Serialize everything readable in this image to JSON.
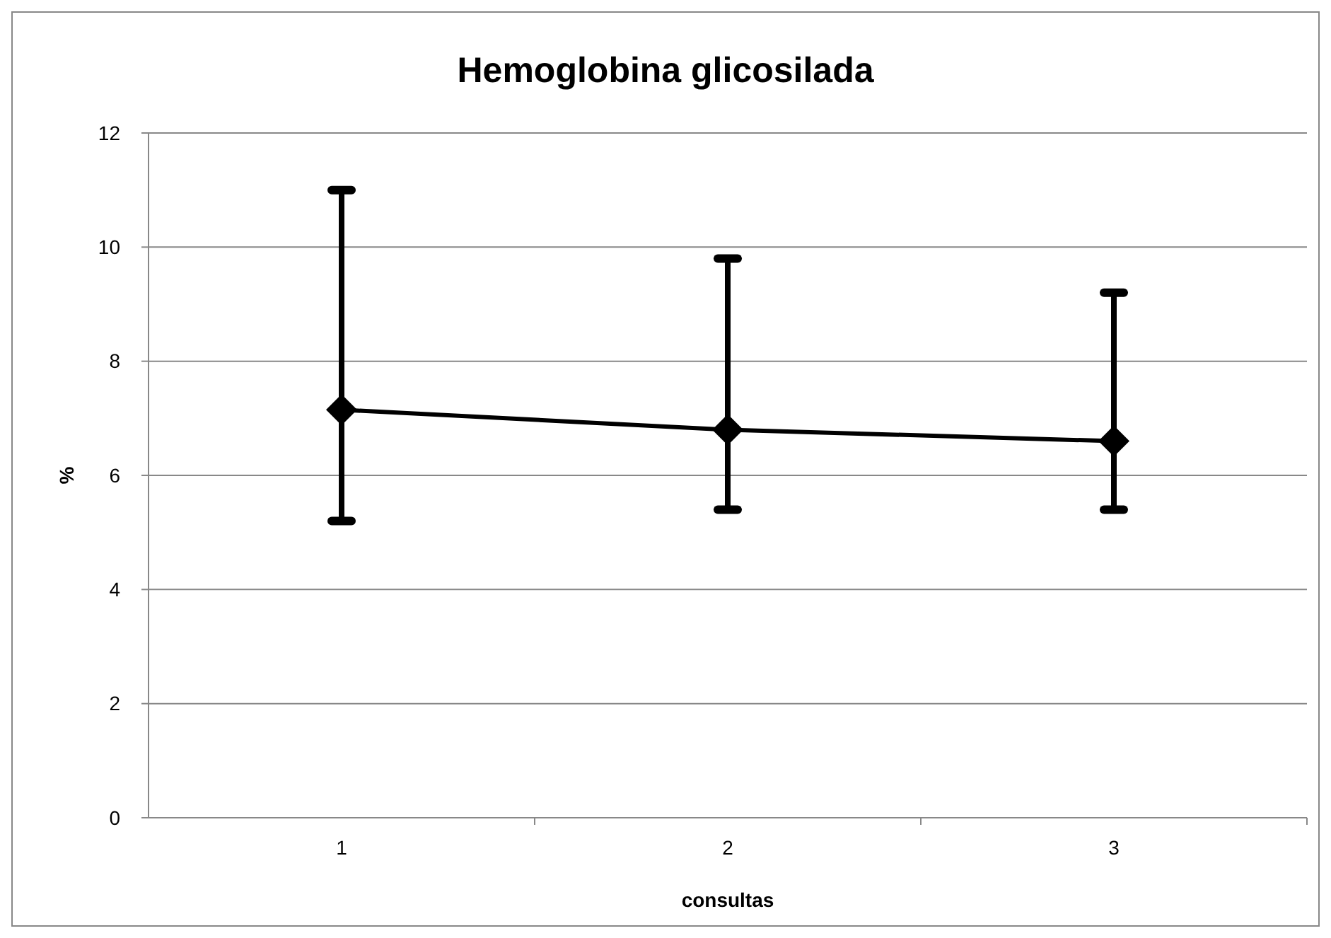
{
  "chart_data": {
    "type": "line",
    "title": "Hemoglobina glicosilada",
    "xlabel": "consultas",
    "ylabel": "%",
    "categories": [
      "1",
      "2",
      "3"
    ],
    "series": [
      {
        "color": "#000000",
        "values": [
          7.15,
          6.8,
          6.6
        ],
        "errors": [
          [
            5.2,
            11.0
          ],
          [
            5.4,
            9.8
          ],
          [
            5.4,
            9.2
          ]
        ]
      }
    ],
    "ylim": [
      0,
      12
    ],
    "yticks": [
      0,
      2,
      4,
      6,
      8,
      10,
      12
    ],
    "grid": "y",
    "marker": "diamond",
    "line_style": "solid"
  }
}
